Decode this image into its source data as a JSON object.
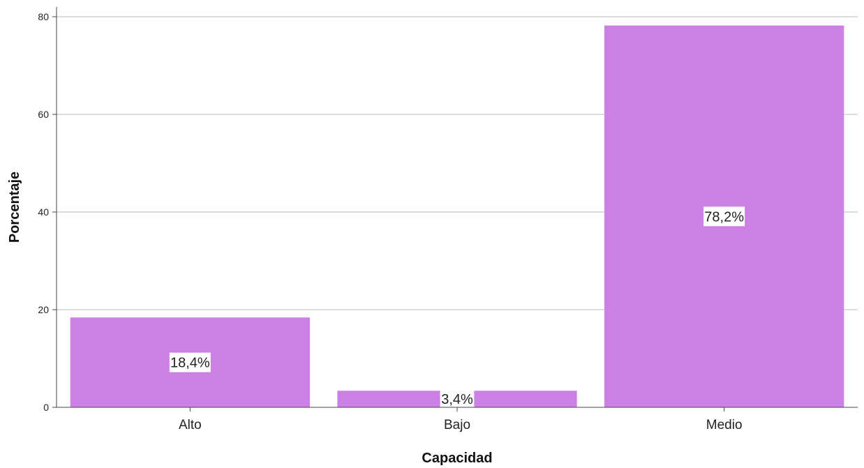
{
  "chart_data": {
    "type": "bar",
    "categories": [
      "Alto",
      "Bajo",
      "Medio"
    ],
    "values": [
      18.4,
      3.4,
      78.2
    ],
    "data_labels": [
      "18,4%",
      "3,4%",
      "78,2%"
    ],
    "xlabel": "Capacidad",
    "ylabel": "Porcentaje",
    "ylim": [
      0,
      82
    ],
    "yticks": [
      0,
      20,
      40,
      60,
      80
    ],
    "grid": "horizontal",
    "bar_color": "#cc80e6",
    "gridline_color": "#c8c8c8",
    "axis_color": "#444444"
  }
}
